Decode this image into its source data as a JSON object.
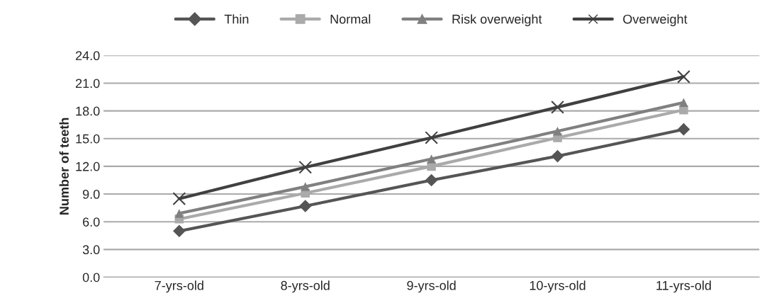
{
  "chart_data": {
    "type": "line",
    "ylabel": "Number of teeth",
    "categories": [
      "7-yrs-old",
      "8-yrs-old",
      "9-yrs-old",
      "10-yrs-old",
      "11-yrs-old"
    ],
    "series": [
      {
        "name": "Thin",
        "color": "#555555",
        "marker": "diamond",
        "values": [
          5.0,
          7.7,
          10.5,
          13.1,
          16.0
        ]
      },
      {
        "name": "Normal",
        "color": "#aaaaaa",
        "marker": "square",
        "values": [
          6.3,
          9.1,
          12.0,
          15.1,
          18.1
        ]
      },
      {
        "name": "Risk overweight",
        "color": "#808080",
        "marker": "triangle",
        "values": [
          6.9,
          9.8,
          12.8,
          15.8,
          18.9
        ]
      },
      {
        "name": "Overweight",
        "color": "#404040",
        "marker": "cross",
        "values": [
          8.5,
          11.9,
          15.1,
          18.4,
          21.7
        ]
      }
    ],
    "ylim": [
      0,
      24
    ],
    "yticks": [
      {
        "value": 0,
        "label": "0.0"
      },
      {
        "value": 3,
        "label": "3.0"
      },
      {
        "value": 6,
        "label": "6.0"
      },
      {
        "value": 9,
        "label": "9.0"
      },
      {
        "value": 12,
        "label": "12.0"
      },
      {
        "value": 15,
        "label": "15.0"
      },
      {
        "value": 18,
        "label": "18.0"
      },
      {
        "value": 21,
        "label": "21.0"
      },
      {
        "value": 24,
        "label": "24.0"
      }
    ],
    "grid": "y",
    "legend": "top"
  }
}
